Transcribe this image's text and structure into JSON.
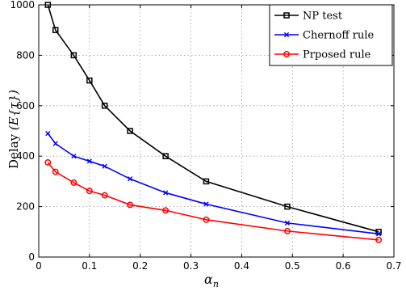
{
  "chart_data": {
    "type": "line",
    "title": "",
    "xlabel_base": "α",
    "xlabel_sub": "n",
    "ylabel_main": "Delay",
    "ylabel_expr": "(E{τ})",
    "xlim": [
      0,
      0.7
    ],
    "ylim": [
      0,
      1000
    ],
    "xticks": [
      0,
      0.1,
      0.2,
      0.3,
      0.4,
      0.5,
      0.6,
      0.7
    ],
    "xtick_labels": [
      "0",
      "0.1",
      "0.2",
      "0.3",
      "0.4",
      "0.5",
      "0.6",
      "0.7"
    ],
    "yticks": [
      0,
      200,
      400,
      600,
      800,
      1000
    ],
    "ytick_labels": [
      "0",
      "200",
      "400",
      "600",
      "800",
      "1000"
    ],
    "grid": true,
    "legend_position": "top-right",
    "series": [
      {
        "name": "NP test",
        "color": "#000000",
        "marker": "square",
        "x": [
          0.018,
          0.033,
          0.069,
          0.1,
          0.13,
          0.18,
          0.25,
          0.33,
          0.49,
          0.67
        ],
        "y": [
          1000,
          900,
          800,
          700,
          600,
          500,
          400,
          300,
          200,
          100
        ]
      },
      {
        "name": "Chernoff rule",
        "color": "#0000ff",
        "marker": "x",
        "x": [
          0.018,
          0.033,
          0.069,
          0.1,
          0.13,
          0.18,
          0.25,
          0.33,
          0.49,
          0.67
        ],
        "y": [
          490,
          450,
          400,
          380,
          360,
          310,
          255,
          210,
          135,
          92
        ]
      },
      {
        "name": "Prposed rule",
        "color": "#ff0000",
        "marker": "circle",
        "x": [
          0.018,
          0.033,
          0.069,
          0.1,
          0.13,
          0.18,
          0.25,
          0.33,
          0.49,
          0.67
        ],
        "y": [
          375,
          338,
          295,
          262,
          245,
          207,
          185,
          148,
          103,
          68
        ]
      }
    ]
  }
}
